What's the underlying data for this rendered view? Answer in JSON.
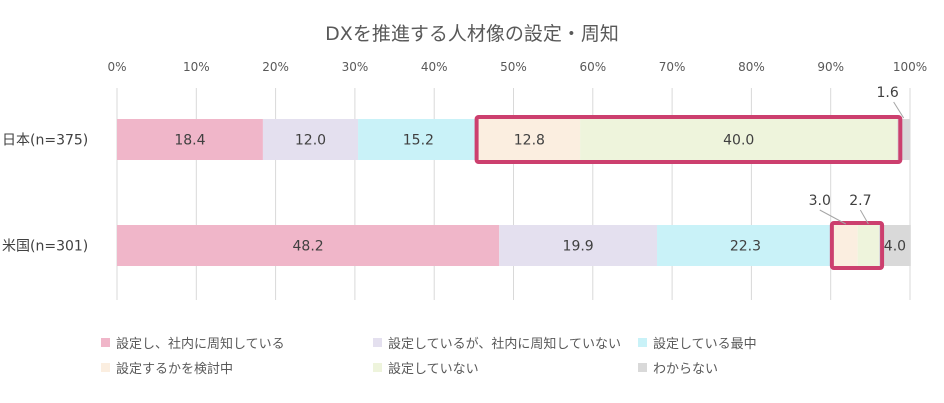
{
  "chart_data": {
    "type": "bar",
    "orientation": "horizontal",
    "stacked": true,
    "title": "DXを推進する人材像の設定・周知",
    "xlabel": "",
    "ylabel": "",
    "xlim": [
      0,
      100
    ],
    "x_ticks": [
      "0%",
      "10%",
      "20%",
      "30%",
      "40%",
      "50%",
      "60%",
      "70%",
      "80%",
      "90%",
      "100%"
    ],
    "grid": true,
    "legend_position": "bottom",
    "categories": [
      "日本(n=375)",
      "米国(n=301)"
    ],
    "series": [
      {
        "name": "設定し、社内に周知している",
        "color": "#f0b6c9",
        "values": [
          18.4,
          48.2
        ]
      },
      {
        "name": "設定しているが、社内に周知していない",
        "color": "#e4e0ef",
        "values": [
          12.0,
          19.9
        ]
      },
      {
        "name": "設定している最中",
        "color": "#c9f2f8",
        "values": [
          15.2,
          22.3
        ]
      },
      {
        "name": "設定するかを検討中",
        "color": "#fbeee0",
        "values": [
          12.8,
          3.0
        ]
      },
      {
        "name": "設定していない",
        "color": "#eef4dc",
        "values": [
          40.0,
          2.7
        ]
      },
      {
        "name": "わからない",
        "color": "#d9d9d9",
        "values": [
          1.6,
          4.0
        ]
      }
    ],
    "data_labels": [
      [
        "18.4",
        "12.0",
        "15.2",
        "12.8",
        "40.0",
        "1.6"
      ],
      [
        "48.2",
        "19.9",
        "22.3",
        "3.0",
        "2.7",
        "4.0"
      ]
    ],
    "highlight": {
      "color": "#cc3f6e",
      "series_indices": [
        3,
        4
      ]
    }
  }
}
